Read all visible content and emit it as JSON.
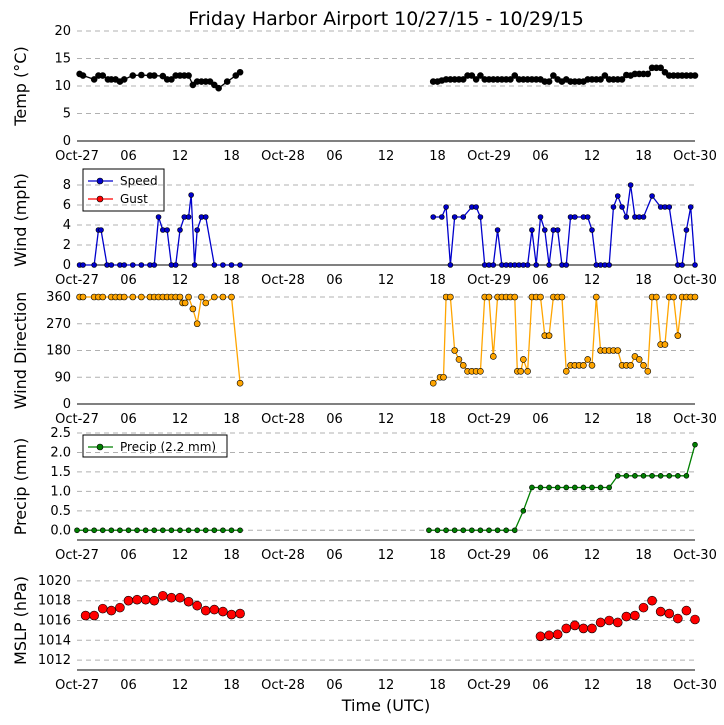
{
  "figure_title": "Friday Harbor Airport 10/27/15 - 10/29/15",
  "x_axis_label": "Time (UTC)",
  "x_axis": {
    "range_hours": [
      0,
      72
    ],
    "tick_hours": [
      0,
      6,
      12,
      18,
      24,
      30,
      36,
      42,
      48,
      54,
      60,
      66,
      72
    ],
    "tick_labels": [
      "Oct-27",
      "06",
      "12",
      "18",
      "Oct-28",
      "06",
      "12",
      "18",
      "Oct-29",
      "06",
      "12",
      "18",
      "Oct-30"
    ]
  },
  "colors": {
    "temp": "#000000",
    "wind_speed": "#0000cc",
    "wind_gust": "#ff0000",
    "wind_direction": "#ffa500",
    "precip": "#007f00",
    "mslp": "#ff0000",
    "grid": "#b0b0b0"
  },
  "chart_data": [
    {
      "id": "temp",
      "type": "line",
      "ylabel": "Temp (°C)",
      "ylim": [
        0,
        20
      ],
      "yticks": [
        0,
        5,
        10,
        15,
        20
      ],
      "grid": true,
      "series": [
        {
          "x": [
            0.3,
            0.7,
            2.0,
            2.5,
            3.0,
            3.6,
            4.0,
            4.5,
            5.0,
            5.5,
            6.5,
            7.5,
            8.5,
            9.0,
            10.0,
            10.5,
            11.0,
            11.5,
            12.0,
            12.5,
            13.0,
            13.5,
            14.0,
            14.5,
            15.0,
            15.5,
            16.0,
            16.5,
            17.5,
            18.5,
            19.0,
            41.5,
            42.0,
            42.5,
            43.0,
            43.5,
            44.0,
            44.5,
            45.0,
            45.5,
            46.0,
            46.5,
            47.0,
            47.5,
            48.0,
            48.5,
            49.0,
            49.5,
            50.0,
            50.5,
            51.0,
            51.5,
            52.0,
            52.5,
            53.0,
            53.5,
            54.0,
            54.5,
            55.0,
            55.5,
            56.0,
            56.5,
            57.0,
            57.5,
            58.0,
            58.5,
            59.0,
            59.5,
            60.0,
            60.5,
            61.0,
            61.5,
            62.0,
            62.5,
            63.0,
            63.5,
            64.0,
            64.5,
            65.0,
            65.5,
            66.0,
            66.5,
            67.0,
            67.5,
            68.0,
            68.5,
            69.0,
            69.5,
            70.0,
            70.5,
            71.0,
            71.5,
            72.0
          ],
          "y": [
            12.2,
            11.9,
            11.2,
            11.9,
            11.9,
            11.2,
            11.2,
            11.2,
            10.8,
            11.2,
            11.9,
            12.0,
            11.9,
            11.9,
            11.8,
            11.2,
            11.2,
            11.9,
            11.9,
            11.9,
            11.9,
            10.2,
            10.8,
            10.8,
            10.8,
            10.8,
            10.2,
            9.6,
            10.8,
            11.9,
            12.5,
            10.8,
            10.8,
            11.0,
            11.2,
            11.2,
            11.2,
            11.2,
            11.2,
            11.9,
            11.9,
            11.2,
            11.9,
            11.2,
            11.2,
            11.2,
            11.2,
            11.2,
            11.2,
            11.2,
            11.9,
            11.2,
            11.2,
            11.2,
            11.2,
            11.2,
            11.2,
            10.8,
            10.8,
            11.9,
            11.2,
            10.8,
            11.2,
            10.8,
            10.8,
            10.8,
            10.8,
            11.2,
            11.2,
            11.2,
            11.2,
            11.9,
            11.2,
            11.2,
            11.2,
            11.2,
            12.0,
            11.9,
            12.2,
            12.2,
            12.2,
            12.2,
            13.3,
            13.3,
            13.3,
            12.5,
            11.9,
            11.9,
            11.9,
            11.9,
            11.9,
            11.9,
            11.9
          ]
        }
      ]
    },
    {
      "id": "wind",
      "type": "line",
      "ylabel": "Wind (mph)",
      "ylim": [
        0,
        9
      ],
      "yticks": [
        0,
        2,
        4,
        6,
        8
      ],
      "grid": true,
      "legend": {
        "placement": "top-left",
        "entries": [
          "Speed",
          "Gust"
        ]
      },
      "series": [
        {
          "name": "Speed",
          "x": [
            0.3,
            0.7,
            2.0,
            2.5,
            2.8,
            3.5,
            4.0,
            5.0,
            5.5,
            6.5,
            7.5,
            8.5,
            9.0,
            9.5,
            10.0,
            10.5,
            11.0,
            11.5,
            12.0,
            12.5,
            13.0,
            13.3,
            13.7,
            14.0,
            14.5,
            15.0,
            16.0,
            17.0,
            18.0,
            19.0,
            41.5,
            42.5,
            43.0,
            43.5,
            44.0,
            45.0,
            46.0,
            46.5,
            47.0,
            47.5,
            48.0,
            48.5,
            49.0,
            49.5,
            50.0,
            50.5,
            51.0,
            51.5,
            52.0,
            52.5,
            53.0,
            53.5,
            54.0,
            54.5,
            55.0,
            55.5,
            56.0,
            56.5,
            57.0,
            57.5,
            58.0,
            59.0,
            59.5,
            60.0,
            60.5,
            61.0,
            61.5,
            62.0,
            62.5,
            63.0,
            63.5,
            64.0,
            64.5,
            65.0,
            65.5,
            66.0,
            67.0,
            68.0,
            68.5,
            69.0,
            70.0,
            70.5,
            71.0,
            71.5,
            72.0
          ],
          "y": [
            0,
            0,
            0,
            3.5,
            3.5,
            0,
            0,
            0,
            0,
            0,
            0,
            0,
            0,
            4.8,
            3.5,
            3.5,
            0,
            0,
            3.5,
            4.8,
            4.8,
            7.0,
            0,
            3.5,
            4.8,
            4.8,
            0,
            0,
            0,
            0,
            4.8,
            4.8,
            5.8,
            0,
            4.8,
            4.8,
            5.8,
            5.8,
            4.8,
            0,
            0,
            0,
            3.5,
            0,
            0,
            0,
            0,
            0,
            0,
            0,
            3.5,
            0,
            4.8,
            3.5,
            0,
            3.5,
            3.5,
            0,
            0,
            4.8,
            4.8,
            4.8,
            4.8,
            3.5,
            0,
            0,
            0,
            0,
            5.8,
            6.9,
            5.8,
            4.8,
            8.0,
            4.8,
            4.8,
            4.8,
            6.9,
            5.8,
            5.8,
            5.8,
            0,
            0,
            3.5,
            5.8,
            0
          ]
        },
        {
          "name": "Gust",
          "x": [],
          "y": []
        }
      ]
    },
    {
      "id": "wind_direction",
      "type": "line",
      "ylabel": "Wind Direction",
      "ylim": [
        0,
        360
      ],
      "yticks": [
        0,
        90,
        180,
        270,
        360
      ],
      "grid": true,
      "series": [
        {
          "x": [
            0.3,
            0.7,
            2.0,
            2.5,
            3.0,
            4.0,
            4.5,
            5.0,
            5.5,
            6.5,
            7.5,
            8.5,
            9.0,
            9.5,
            10.0,
            10.5,
            11.0,
            11.5,
            12.0,
            12.3,
            12.6,
            13.0,
            13.5,
            14.0,
            14.5,
            15.0,
            16.0,
            17.0,
            18.0,
            19.0,
            41.5,
            42.3,
            42.7,
            43.0,
            43.5,
            44.0,
            44.5,
            45.0,
            45.5,
            46.0,
            46.5,
            47.0,
            47.5,
            48.0,
            48.5,
            49.0,
            49.5,
            50.0,
            50.5,
            51.0,
            51.3,
            51.7,
            52.0,
            52.5,
            53.0,
            53.5,
            54.0,
            54.5,
            55.0,
            55.5,
            56.0,
            56.5,
            57.0,
            57.5,
            58.0,
            58.5,
            59.0,
            59.5,
            60.0,
            60.5,
            61.0,
            61.5,
            62.0,
            62.5,
            63.0,
            63.5,
            64.0,
            64.5,
            65.0,
            65.5,
            66.0,
            66.5,
            67.0,
            67.5,
            68.0,
            68.5,
            69.0,
            69.5,
            70.0,
            70.5,
            71.0,
            71.5,
            72.0
          ],
          "y": [
            360,
            360,
            360,
            360,
            360,
            360,
            360,
            360,
            360,
            360,
            360,
            360,
            360,
            360,
            360,
            360,
            360,
            360,
            360,
            340,
            340,
            360,
            320,
            270,
            360,
            340,
            360,
            360,
            360,
            70,
            70,
            90,
            90,
            360,
            360,
            180,
            150,
            130,
            110,
            110,
            110,
            110,
            360,
            360,
            160,
            360,
            360,
            360,
            360,
            360,
            110,
            110,
            150,
            110,
            360,
            360,
            360,
            230,
            230,
            360,
            360,
            360,
            110,
            130,
            130,
            130,
            130,
            150,
            130,
            360,
            180,
            180,
            180,
            180,
            180,
            130,
            130,
            130,
            160,
            150,
            130,
            110,
            360,
            360,
            200,
            200,
            360,
            360,
            230,
            360,
            360,
            360,
            360
          ]
        }
      ]
    },
    {
      "id": "precip",
      "type": "line",
      "ylabel": "Precip (mm)",
      "ylim": [
        -0.25,
        2.5
      ],
      "yticks": [
        0.0,
        0.5,
        1.0,
        1.5,
        2.0,
        2.5
      ],
      "grid": true,
      "legend": {
        "placement": "top-left",
        "entries": [
          "Precip (2.2 mm)"
        ]
      },
      "series": [
        {
          "name": "Precip (2.2 mm)",
          "x": [
            0,
            1,
            2,
            3,
            4,
            5,
            6,
            7,
            8,
            9,
            10,
            11,
            12,
            13,
            14,
            15,
            16,
            17,
            18,
            19,
            41,
            42,
            43,
            44,
            45,
            46,
            47,
            48,
            49,
            50,
            51,
            52,
            53,
            54,
            55,
            56,
            57,
            58,
            59,
            60,
            61,
            62,
            63,
            64,
            65,
            66,
            67,
            68,
            69,
            70,
            71,
            72
          ],
          "y": [
            0,
            0,
            0,
            0,
            0,
            0,
            0,
            0,
            0,
            0,
            0,
            0,
            0,
            0,
            0,
            0,
            0,
            0,
            0,
            0,
            0,
            0,
            0,
            0,
            0,
            0,
            0,
            0,
            0,
            0,
            0,
            0.5,
            1.1,
            1.1,
            1.1,
            1.1,
            1.1,
            1.1,
            1.1,
            1.1,
            1.1,
            1.1,
            1.4,
            1.4,
            1.4,
            1.4,
            1.4,
            1.4,
            1.4,
            1.4,
            1.4,
            2.2
          ]
        }
      ]
    },
    {
      "id": "mslp",
      "type": "scatter",
      "ylabel": "MSLP (hPa)",
      "ylim": [
        1011,
        1021
      ],
      "yticks": [
        1012,
        1014,
        1016,
        1018,
        1020
      ],
      "grid": true,
      "series": [
        {
          "x": [
            1,
            2,
            3,
            4,
            5,
            6,
            7,
            8,
            9,
            10,
            11,
            12,
            13,
            14,
            15,
            16,
            17,
            18,
            19,
            54,
            55,
            56,
            57,
            58,
            59,
            60,
            61,
            62,
            63,
            64,
            65,
            66,
            67,
            68,
            69,
            70,
            71,
            72
          ],
          "y": [
            1016.5,
            1016.5,
            1017.2,
            1017.0,
            1017.3,
            1018.0,
            1018.1,
            1018.1,
            1018.0,
            1018.5,
            1018.3,
            1018.3,
            1017.9,
            1017.5,
            1017.0,
            1017.1,
            1016.9,
            1016.6,
            1016.7,
            1014.4,
            1014.5,
            1014.6,
            1015.2,
            1015.5,
            1015.2,
            1015.2,
            1015.8,
            1016.0,
            1015.8,
            1016.4,
            1016.5,
            1017.3,
            1018.0,
            1016.9,
            1016.7,
            1016.2,
            1017.0,
            1016.1
          ]
        }
      ]
    }
  ]
}
